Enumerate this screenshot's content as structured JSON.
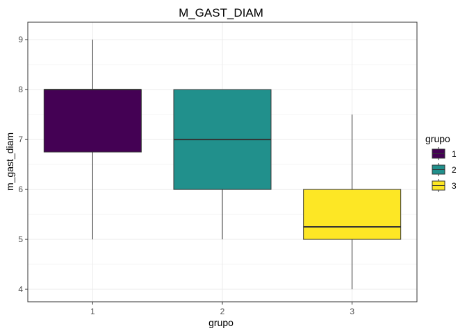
{
  "chart_data": {
    "type": "boxplot",
    "title": "M_GAST_DIAM",
    "xlabel": "grupo",
    "ylabel": "m_gast_diam",
    "categories": [
      "1",
      "2",
      "3"
    ],
    "ylim": [
      3.75,
      9.35
    ],
    "yticks": [
      4,
      5,
      6,
      7,
      8,
      9
    ],
    "grid": true,
    "boxes": [
      {
        "group": "1",
        "whisker_low": 5,
        "q1": 6.75,
        "median": 8,
        "q3": 8,
        "whisker_high": 9,
        "color": "#440154"
      },
      {
        "group": "2",
        "whisker_low": 5,
        "q1": 6,
        "median": 7,
        "q3": 8,
        "whisker_high": 8,
        "color": "#21908C"
      },
      {
        "group": "3",
        "whisker_low": 4,
        "q1": 5,
        "median": 5.25,
        "q3": 6,
        "whisker_high": 7.5,
        "color": "#FDE725"
      }
    ],
    "legend": {
      "title": "grupo",
      "position": "right",
      "items": [
        {
          "label": "1",
          "color": "#440154"
        },
        {
          "label": "2",
          "color": "#21908C"
        },
        {
          "label": "3",
          "color": "#FDE725"
        }
      ]
    }
  }
}
